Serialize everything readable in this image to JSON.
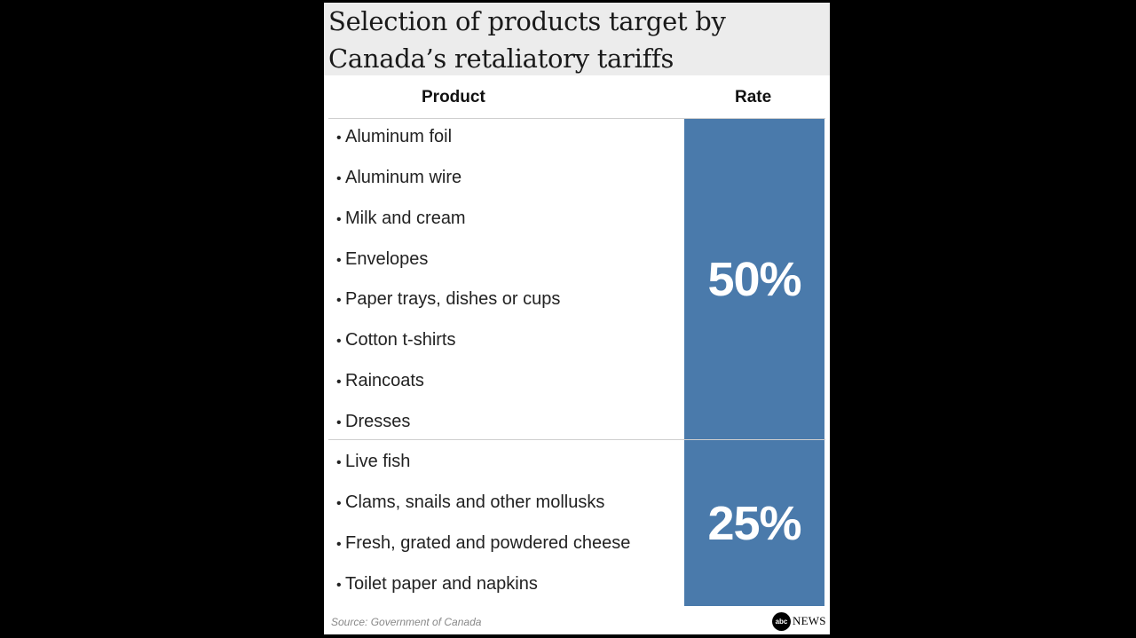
{
  "title": "Selection of products target by Canada’s retaliatory tariffs",
  "headers": {
    "product": "Product",
    "rate": "Rate"
  },
  "groups": [
    {
      "rate": "50%",
      "items": [
        "Aluminum foil",
        "Aluminum wire",
        "Milk and cream",
        "Envelopes",
        "Paper trays, dishes or cups",
        "Cotton t-shirts",
        "Raincoats",
        "Dresses"
      ]
    },
    {
      "rate": "25%",
      "items": [
        "Live fish",
        "Clams, snails and other mollusks",
        "Fresh, grated and powdered cheese",
        "Toilet paper and napkins"
      ]
    }
  ],
  "bullet": "•",
  "source": "Source: Government of Canada",
  "logo": {
    "mark": "abc",
    "text": "NEWS"
  },
  "colors": {
    "rate_fill": "#4a7aab",
    "title_band": "#ececec",
    "background": "#000000"
  }
}
